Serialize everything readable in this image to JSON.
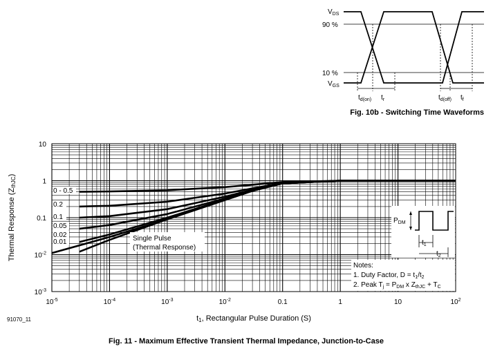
{
  "waveform": {
    "labels": {
      "vds": "V",
      "vds_sub": "DS",
      "vgs": "V",
      "vgs_sub": "GS",
      "p90": "90 %",
      "p10": "10 %",
      "tdon": "t",
      "tdon_sub": "d(on)",
      "tr": "t",
      "tr_sub": "r",
      "tdoff": "t",
      "tdoff_sub": "d(off)",
      "tf": "t",
      "tf_sub": "f"
    },
    "caption": "Fig. 10b - Switching Time Waveforms"
  },
  "chart_data": {
    "type": "line",
    "xscale": "log",
    "yscale": "log",
    "xlim": [
      1e-05,
      100
    ],
    "ylim": [
      0.001,
      10
    ],
    "x_ticks": [
      {
        "b": "10",
        "e": "-5"
      },
      {
        "b": "10",
        "e": "-4"
      },
      {
        "b": "10",
        "e": "-3"
      },
      {
        "b": "10",
        "e": "-2"
      },
      {
        "b": "0.1",
        "e": ""
      },
      {
        "b": "1",
        "e": ""
      },
      {
        "b": "10",
        "e": ""
      },
      {
        "b": "10",
        "e": "2"
      }
    ],
    "y_ticks": [
      {
        "b": "10",
        "e": ""
      },
      {
        "b": "1",
        "e": ""
      },
      {
        "b": "0.1",
        "e": ""
      },
      {
        "b": "10",
        "e": "-2"
      },
      {
        "b": "10",
        "e": "-3"
      }
    ],
    "xlabel": {
      "pre": "t",
      "sub": "1",
      "post": ", Rectangular Pulse Duration (S)"
    },
    "ylabel": {
      "pre": "Thermal Response (Z",
      "sub": "thJC",
      "post": ")"
    },
    "series": [
      {
        "name": "0 - 0.5",
        "x": [
          3e-05,
          0.0001,
          0.001,
          0.01,
          0.03,
          0.1,
          1,
          100
        ],
        "y": [
          0.5,
          0.51,
          0.55,
          0.67,
          0.78,
          0.92,
          1.0,
          1.0
        ]
      },
      {
        "name": "0.2",
        "x": [
          3e-05,
          0.0001,
          0.001,
          0.01,
          0.03,
          0.1,
          1,
          100
        ],
        "y": [
          0.2,
          0.21,
          0.27,
          0.45,
          0.62,
          0.87,
          1.0,
          1.0
        ]
      },
      {
        "name": "0.1",
        "x": [
          3e-05,
          0.0001,
          0.001,
          0.01,
          0.03,
          0.1,
          1,
          100
        ],
        "y": [
          0.1,
          0.11,
          0.17,
          0.37,
          0.57,
          0.86,
          1.0,
          1.0
        ]
      },
      {
        "name": "0.05",
        "x": [
          3e-05,
          0.0001,
          0.001,
          0.01,
          0.03,
          0.1,
          1,
          100
        ],
        "y": [
          0.05,
          0.063,
          0.125,
          0.33,
          0.55,
          0.85,
          1.0,
          1.0
        ]
      },
      {
        "name": "0.02",
        "x": [
          3e-05,
          0.0001,
          0.001,
          0.01,
          0.03,
          0.1,
          1,
          100
        ],
        "y": [
          0.022,
          0.035,
          0.1,
          0.31,
          0.54,
          0.85,
          1.0,
          1.0
        ]
      },
      {
        "name": "0.01",
        "x": [
          3e-05,
          0.0001,
          0.001,
          0.01,
          0.03,
          0.1,
          1,
          100
        ],
        "y": [
          0.012,
          0.025,
          0.09,
          0.3,
          0.53,
          0.85,
          1.0,
          1.0
        ]
      },
      {
        "name": "Single Pulse (Thermal Response)",
        "x": [
          1e-05,
          0.0001,
          0.001,
          0.01,
          0.03,
          0.1,
          1,
          100
        ],
        "y": [
          0.011,
          0.03,
          0.09,
          0.3,
          0.53,
          0.85,
          1.0,
          1.0
        ]
      }
    ],
    "annotation": {
      "line1": "Single Pulse",
      "line2": "(Thermal Response)"
    },
    "notes": {
      "title": "Notes:",
      "n1": {
        "pre": "1.  Duty Factor, D = t",
        "s1": "1",
        "mid": "/t",
        "s2": "2"
      },
      "n2": {
        "pre": "2.  Peak T",
        "s1": "j",
        "a": " = P",
        "s2": "DM",
        "b": " x Z",
        "s3": "thJC",
        "c": " + T",
        "s4": "C"
      }
    },
    "inset": {
      "pdm": "P",
      "pdm_sub": "DM",
      "t1": "t",
      "t1_sub": "1",
      "t2": "t",
      "t2_sub": "2"
    },
    "code": "91070_11",
    "caption": "Fig. 11 - Maximum Effective Transient Thermal Impedance, Junction-to-Case"
  }
}
